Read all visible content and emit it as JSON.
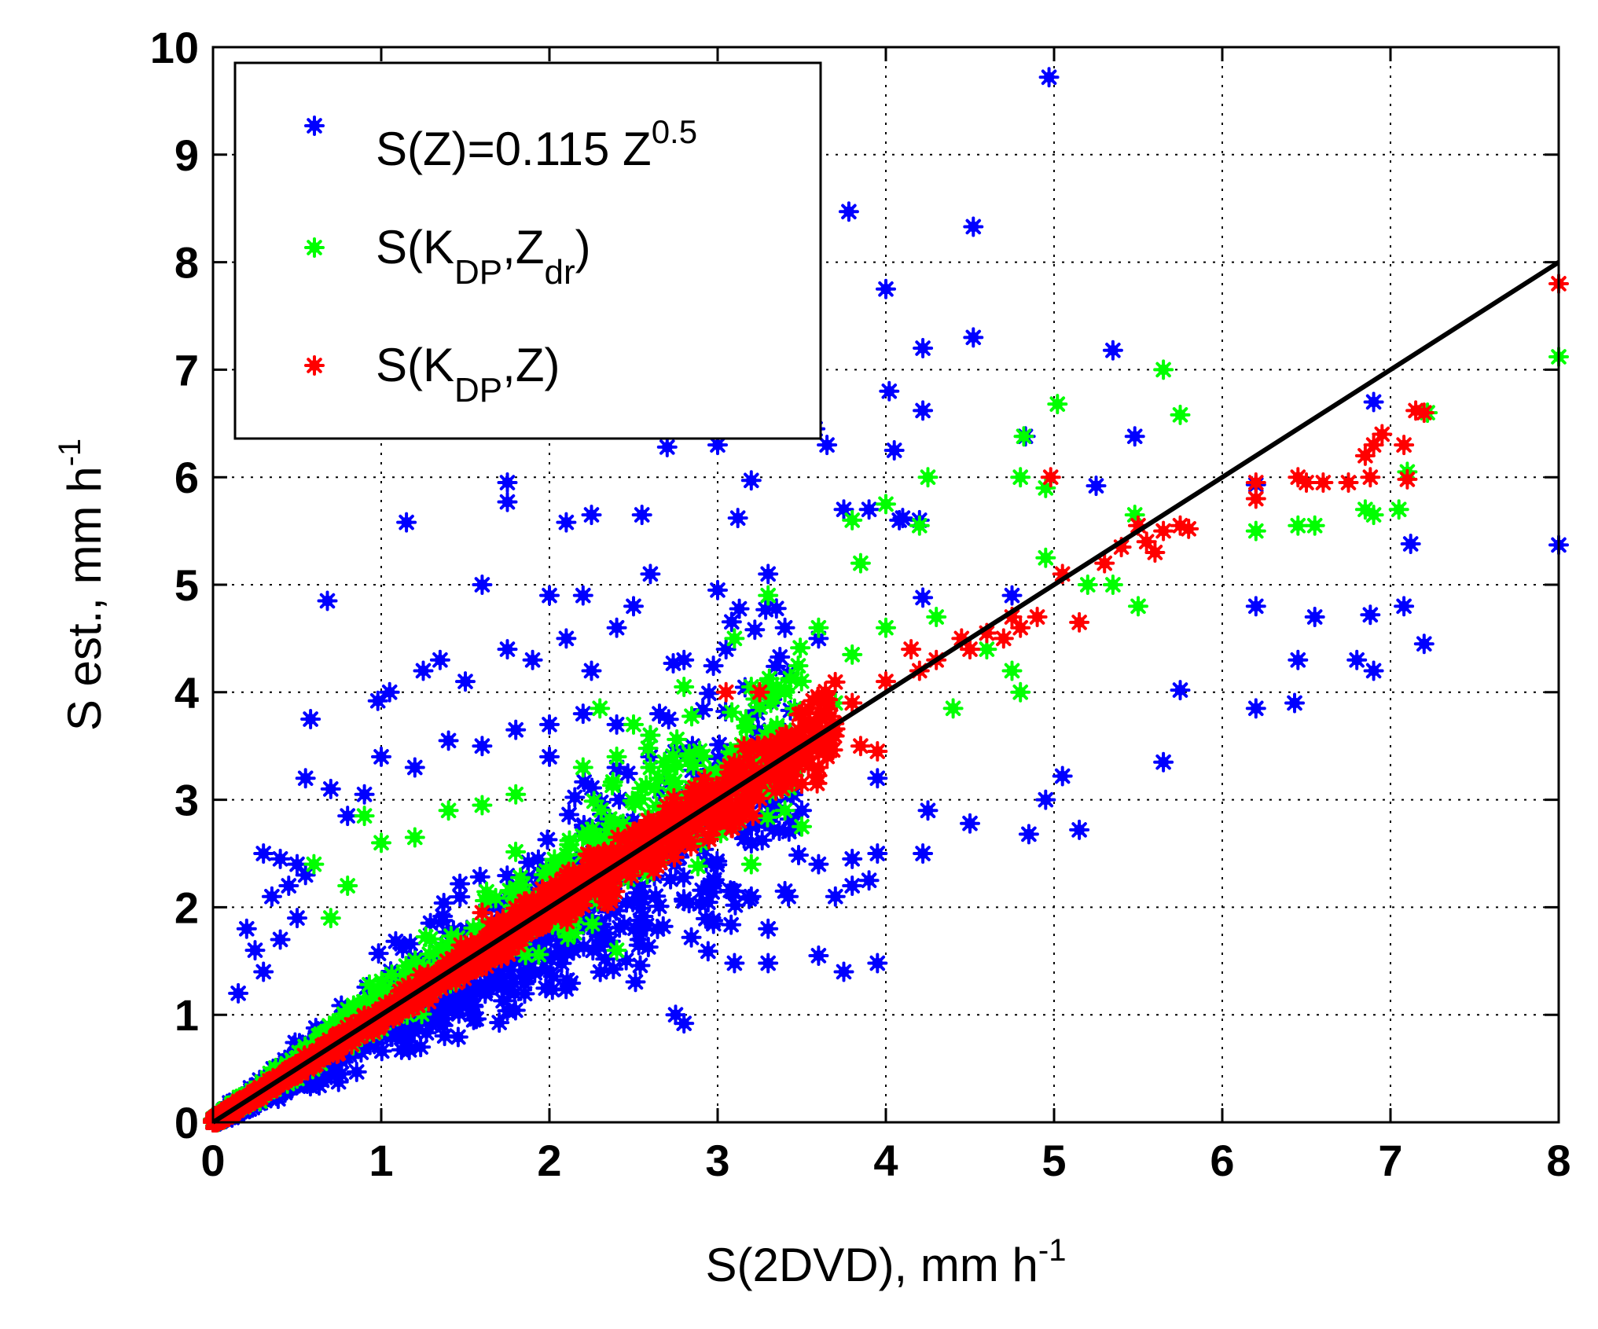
{
  "chart_data": {
    "type": "scatter",
    "title": "",
    "xlabel": "S(2DVD), mm h",
    "xlabel_exp": "-1",
    "ylabel": "S est., mm h",
    "ylabel_exp": "-1",
    "xlim": [
      0,
      8
    ],
    "ylim": [
      0,
      10
    ],
    "xticks": [
      0,
      1,
      2,
      3,
      4,
      5,
      6,
      7,
      8
    ],
    "yticks": [
      0,
      1,
      2,
      3,
      4,
      5,
      6,
      7,
      8,
      9,
      10
    ],
    "xtick_labels": [
      "0",
      "1",
      "2",
      "3",
      "4",
      "5",
      "6",
      "7",
      "8"
    ],
    "ytick_labels": [
      "0",
      "1",
      "2",
      "3",
      "4",
      "5",
      "6",
      "7",
      "8",
      "9",
      "10"
    ],
    "grid": true,
    "grid_style": "dotted",
    "legend_position": "top-left",
    "reference_line": {
      "x": [
        0,
        8
      ],
      "y": [
        0,
        8
      ],
      "color": "#000000"
    },
    "series": [
      {
        "legend_base": "S(Z)=0.115 Z",
        "legend_sup": "0.5",
        "legend_sub1": "",
        "legend_tail": "",
        "color": "#0000ff",
        "marker": "asterisk",
        "points": [
          [
            4.97,
            9.72
          ],
          [
            3.78,
            8.47
          ],
          [
            4.52,
            8.33
          ],
          [
            4.0,
            7.75
          ],
          [
            4.52,
            7.3
          ],
          [
            4.22,
            7.2
          ],
          [
            5.35,
            7.18
          ],
          [
            4.02,
            6.8
          ],
          [
            6.9,
            6.7
          ],
          [
            4.22,
            6.62
          ],
          [
            3.58,
            6.45
          ],
          [
            3.65,
            6.3
          ],
          [
            2.7,
            6.28
          ],
          [
            3.0,
            6.3
          ],
          [
            4.05,
            6.25
          ],
          [
            4.83,
            6.38
          ],
          [
            5.48,
            6.38
          ],
          [
            1.75,
            5.95
          ],
          [
            1.75,
            5.77
          ],
          [
            3.2,
            5.97
          ],
          [
            5.25,
            5.92
          ],
          [
            6.2,
            5.93
          ],
          [
            1.15,
            5.58
          ],
          [
            2.1,
            5.58
          ],
          [
            2.25,
            5.65
          ],
          [
            2.55,
            5.65
          ],
          [
            3.12,
            5.62
          ],
          [
            3.75,
            5.7
          ],
          [
            3.9,
            5.7
          ],
          [
            4.08,
            5.6
          ],
          [
            4.1,
            5.62
          ],
          [
            4.2,
            5.6
          ],
          [
            7.12,
            5.38
          ],
          [
            8.0,
            5.37
          ],
          [
            0.68,
            4.85
          ],
          [
            1.6,
            5.0
          ],
          [
            2.0,
            4.9
          ],
          [
            2.2,
            4.9
          ],
          [
            2.5,
            4.8
          ],
          [
            2.6,
            5.1
          ],
          [
            3.0,
            4.95
          ],
          [
            3.3,
            5.1
          ],
          [
            4.22,
            4.88
          ],
          [
            4.75,
            4.9
          ],
          [
            6.2,
            4.8
          ],
          [
            6.55,
            4.7
          ],
          [
            6.88,
            4.72
          ],
          [
            7.08,
            4.8
          ],
          [
            7.2,
            4.45
          ],
          [
            0.58,
            3.75
          ],
          [
            0.98,
            3.92
          ],
          [
            1.05,
            4.0
          ],
          [
            1.25,
            4.2
          ],
          [
            1.35,
            4.3
          ],
          [
            1.5,
            4.1
          ],
          [
            1.75,
            4.4
          ],
          [
            1.9,
            4.3
          ],
          [
            2.1,
            4.5
          ],
          [
            2.25,
            4.2
          ],
          [
            2.4,
            4.6
          ],
          [
            2.8,
            4.3
          ],
          [
            3.05,
            4.4
          ],
          [
            3.4,
            4.6
          ],
          [
            3.6,
            4.5
          ],
          [
            5.75,
            4.02
          ],
          [
            6.2,
            3.85
          ],
          [
            6.43,
            3.9
          ],
          [
            6.45,
            4.3
          ],
          [
            6.8,
            4.3
          ],
          [
            6.9,
            4.2
          ],
          [
            0.55,
            3.2
          ],
          [
            0.7,
            3.1
          ],
          [
            0.8,
            2.85
          ],
          [
            0.9,
            3.05
          ],
          [
            1.0,
            3.4
          ],
          [
            1.2,
            3.3
          ],
          [
            1.4,
            3.55
          ],
          [
            1.6,
            3.5
          ],
          [
            1.8,
            3.65
          ],
          [
            2.0,
            3.7
          ],
          [
            2.2,
            3.8
          ],
          [
            2.4,
            3.7
          ],
          [
            2.6,
            3.6
          ],
          [
            2.85,
            3.5
          ],
          [
            3.2,
            3.3
          ],
          [
            3.4,
            3.4
          ],
          [
            3.95,
            3.2
          ],
          [
            5.05,
            3.22
          ],
          [
            4.95,
            3.0
          ],
          [
            5.65,
            3.35
          ],
          [
            4.25,
            2.9
          ],
          [
            4.5,
            2.78
          ],
          [
            4.85,
            2.68
          ],
          [
            5.15,
            2.72
          ],
          [
            3.8,
            2.45
          ],
          [
            3.95,
            2.5
          ],
          [
            4.22,
            2.5
          ],
          [
            3.6,
            2.4
          ],
          [
            3.8,
            2.2
          ],
          [
            3.9,
            2.25
          ],
          [
            0.3,
            2.5
          ],
          [
            0.4,
            2.45
          ],
          [
            0.5,
            2.4
          ],
          [
            0.35,
            2.1
          ],
          [
            0.45,
            2.2
          ],
          [
            0.55,
            2.3
          ],
          [
            0.2,
            1.8
          ],
          [
            0.25,
            1.6
          ],
          [
            0.15,
            1.2
          ],
          [
            0.3,
            1.4
          ],
          [
            0.4,
            1.7
          ],
          [
            0.5,
            1.9
          ],
          [
            3.6,
            1.55
          ],
          [
            3.75,
            1.4
          ],
          [
            3.95,
            1.48
          ],
          [
            3.3,
            1.48
          ],
          [
            3.1,
            1.48
          ],
          [
            2.75,
            1.0
          ],
          [
            2.8,
            0.92
          ],
          [
            3.4,
            2.15
          ],
          [
            3.7,
            2.1
          ],
          [
            2.0,
            3.4
          ],
          [
            2.4,
            3.3
          ],
          [
            2.6,
            3.4
          ],
          [
            2.9,
            3.2
          ],
          [
            3.1,
            3.3
          ],
          [
            3.3,
            2.8
          ],
          [
            3.5,
            2.9
          ],
          [
            3.2,
            2.1
          ],
          [
            3.3,
            1.8
          ]
        ],
        "cloud": {
          "x_range": [
            0,
            3.5
          ],
          "center_slope": 0.88,
          "upper_slope": 1.7,
          "lower_slope": 0.42,
          "count": 950
        }
      },
      {
        "legend_base": "S(K",
        "legend_sub1": "DP",
        "legend_mid": ",Z",
        "legend_sub2": "dr",
        "legend_tail": ")",
        "color": "#00ff00",
        "marker": "asterisk",
        "points": [
          [
            5.65,
            7.0
          ],
          [
            5.75,
            6.58
          ],
          [
            5.02,
            6.68
          ],
          [
            4.82,
            6.38
          ],
          [
            7.22,
            6.6
          ],
          [
            8.0,
            7.12
          ],
          [
            4.25,
            6.0
          ],
          [
            4.8,
            6.0
          ],
          [
            4.95,
            5.9
          ],
          [
            7.1,
            6.05
          ],
          [
            6.85,
            5.7
          ],
          [
            6.9,
            5.65
          ],
          [
            7.05,
            5.7
          ],
          [
            6.2,
            5.5
          ],
          [
            6.45,
            5.55
          ],
          [
            6.55,
            5.55
          ],
          [
            3.8,
            5.6
          ],
          [
            4.0,
            5.75
          ],
          [
            4.2,
            5.55
          ],
          [
            5.48,
            5.65
          ],
          [
            5.5,
            4.8
          ],
          [
            4.95,
            5.25
          ],
          [
            5.2,
            5.0
          ],
          [
            5.35,
            5.0
          ],
          [
            3.85,
            5.2
          ],
          [
            3.3,
            4.9
          ],
          [
            4.3,
            4.7
          ],
          [
            3.1,
            4.5
          ],
          [
            3.6,
            4.6
          ],
          [
            3.8,
            4.35
          ],
          [
            4.0,
            4.6
          ],
          [
            4.6,
            4.4
          ],
          [
            4.75,
            4.2
          ],
          [
            4.8,
            4.0
          ],
          [
            4.4,
            3.85
          ],
          [
            2.3,
            3.85
          ],
          [
            2.5,
            3.7
          ],
          [
            2.6,
            3.6
          ],
          [
            2.8,
            4.05
          ],
          [
            3.2,
            4.05
          ],
          [
            3.4,
            4.0
          ],
          [
            3.7,
            3.9
          ],
          [
            2.4,
            3.4
          ],
          [
            2.6,
            3.3
          ],
          [
            2.2,
            3.3
          ],
          [
            1.6,
            2.95
          ],
          [
            1.8,
            3.05
          ],
          [
            1.4,
            2.9
          ],
          [
            1.2,
            2.65
          ],
          [
            0.9,
            2.85
          ],
          [
            1.0,
            2.6
          ],
          [
            0.7,
            1.9
          ],
          [
            0.8,
            2.2
          ],
          [
            0.6,
            2.4
          ],
          [
            2.4,
            1.6
          ],
          [
            3.2,
            2.4
          ],
          [
            3.4,
            2.9
          ],
          [
            3.5,
            2.75
          ],
          [
            2.65,
            3.2
          ],
          [
            2.9,
            2.6
          ]
        ],
        "cloud": {
          "x_range": [
            0,
            3.5
          ],
          "center_slope": 1.05,
          "upper_slope": 1.45,
          "lower_slope": 0.75,
          "count": 750
        }
      },
      {
        "legend_base": "S(K",
        "legend_sub1": "DP",
        "legend_mid": ",Z",
        "legend_sub2": "",
        "legend_tail": ")",
        "color": "#ff0000",
        "marker": "asterisk",
        "points": [
          [
            8.0,
            7.8
          ],
          [
            7.15,
            6.62
          ],
          [
            7.2,
            6.6
          ],
          [
            6.95,
            6.4
          ],
          [
            6.9,
            6.3
          ],
          [
            6.85,
            6.2
          ],
          [
            7.08,
            6.3
          ],
          [
            6.88,
            6.0
          ],
          [
            6.75,
            5.95
          ],
          [
            7.1,
            5.98
          ],
          [
            6.2,
            5.95
          ],
          [
            6.2,
            5.8
          ],
          [
            6.45,
            6.0
          ],
          [
            6.5,
            5.95
          ],
          [
            6.6,
            5.95
          ],
          [
            4.98,
            6.0
          ],
          [
            5.05,
            5.1
          ],
          [
            5.5,
            5.55
          ],
          [
            5.55,
            5.4
          ],
          [
            5.6,
            5.3
          ],
          [
            5.75,
            5.55
          ],
          [
            5.65,
            5.5
          ],
          [
            5.8,
            5.52
          ],
          [
            5.3,
            5.2
          ],
          [
            5.4,
            5.35
          ],
          [
            5.15,
            4.65
          ],
          [
            4.9,
            4.7
          ],
          [
            4.7,
            4.5
          ],
          [
            4.5,
            4.4
          ],
          [
            4.3,
            4.3
          ],
          [
            4.15,
            4.4
          ],
          [
            4.0,
            4.1
          ],
          [
            3.8,
            3.9
          ],
          [
            3.6,
            3.5
          ],
          [
            3.85,
            3.5
          ],
          [
            4.2,
            4.2
          ],
          [
            4.45,
            4.5
          ],
          [
            4.75,
            4.7
          ],
          [
            4.6,
            4.55
          ],
          [
            4.8,
            4.6
          ],
          [
            3.95,
            3.45
          ],
          [
            3.6,
            3.3
          ],
          [
            3.5,
            3.15
          ],
          [
            3.4,
            3.25
          ],
          [
            3.2,
            3.1
          ],
          [
            3.0,
            3.0
          ],
          [
            3.05,
            4.0
          ],
          [
            3.25,
            4.0
          ],
          [
            3.5,
            3.8
          ],
          [
            1.6,
            1.95
          ]
        ],
        "cloud": {
          "x_range": [
            0,
            3.7
          ],
          "center_slope": 1.0,
          "upper_slope": 1.15,
          "lower_slope": 0.85,
          "count": 1400
        }
      }
    ]
  }
}
